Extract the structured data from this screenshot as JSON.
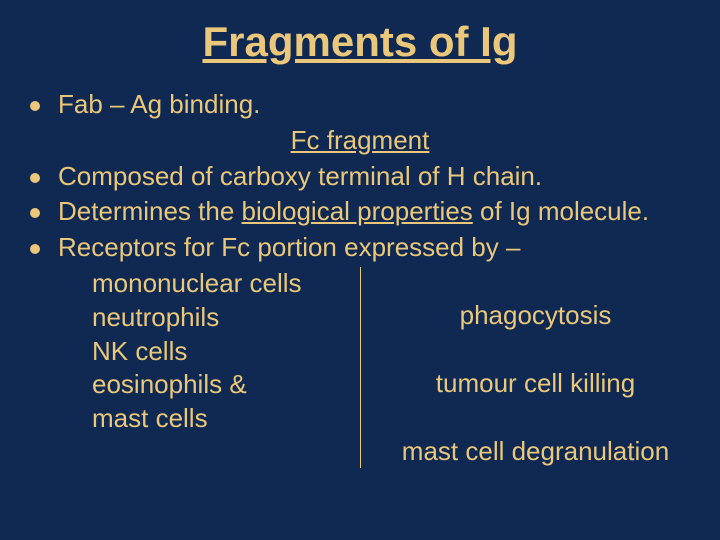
{
  "colors": {
    "background": "#0f2952",
    "text": "#eac77a",
    "bullet": "#eac77a",
    "divider": "#eac77a"
  },
  "typography": {
    "title_fontsize": 42,
    "body_fontsize": 26,
    "font_family": "Arial"
  },
  "title": "Fragments of Ig",
  "bullets": {
    "b1": "Fab – Ag binding.",
    "subheading": "Fc fragment",
    "b2": "Composed of carboxy terminal of H chain.",
    "b3_pre": "Determines the ",
    "b3_u": "biological properties",
    "b3_post": " of Ig molecule.",
    "b4": "Receptors for Fc portion expressed by –"
  },
  "left_items": {
    "l1": "mononuclear cells",
    "l2": "neutrophils",
    "l3": "NK cells",
    "l4": "eosinophils &",
    "l5": "mast cells"
  },
  "right_items": {
    "r1": "phagocytosis",
    "r2": "tumour cell killing",
    "r3": "mast cell degranulation"
  }
}
